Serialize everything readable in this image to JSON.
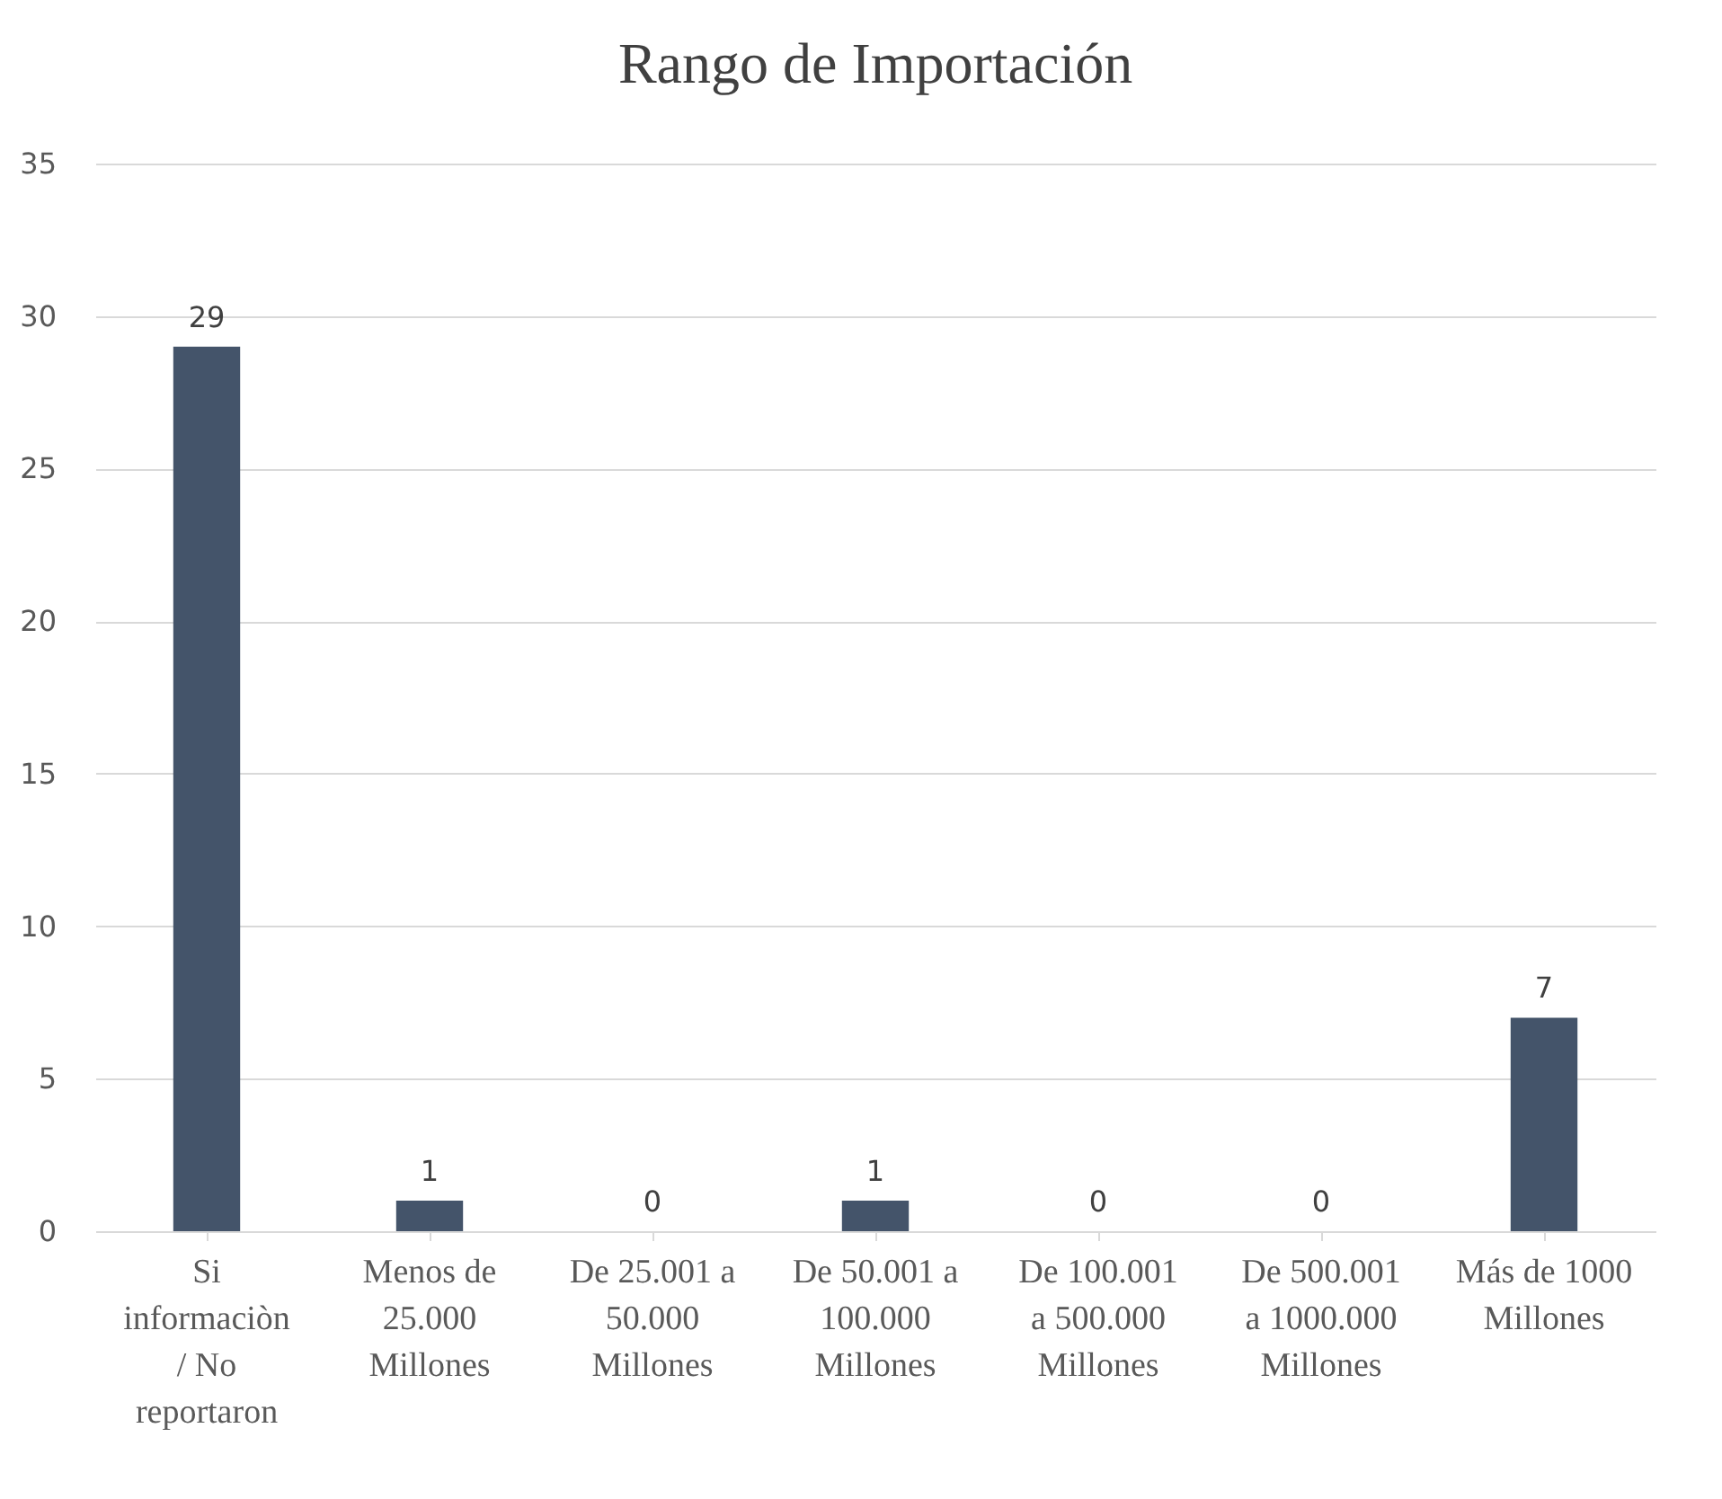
{
  "chart_data": {
    "type": "bar",
    "title": "Rango de Importación",
    "categories": [
      "Si informaciòn / No reportaron",
      "Menos de 25.000 Millones",
      "De 25.001 a 50.000 Millones",
      "De 50.001 a 100.000 Millones",
      "De 100.001 a 500.000 Millones",
      "De 500.001 a 1000.000 Millones",
      "Más de 1000 Millones"
    ],
    "values": [
      29,
      1,
      0,
      1,
      0,
      0,
      7
    ],
    "color": "#44546a",
    "ylim": [
      0,
      35
    ],
    "yticks": [
      0,
      5,
      10,
      15,
      20,
      25,
      30,
      35
    ],
    "grid": "y",
    "data_labels": true
  }
}
